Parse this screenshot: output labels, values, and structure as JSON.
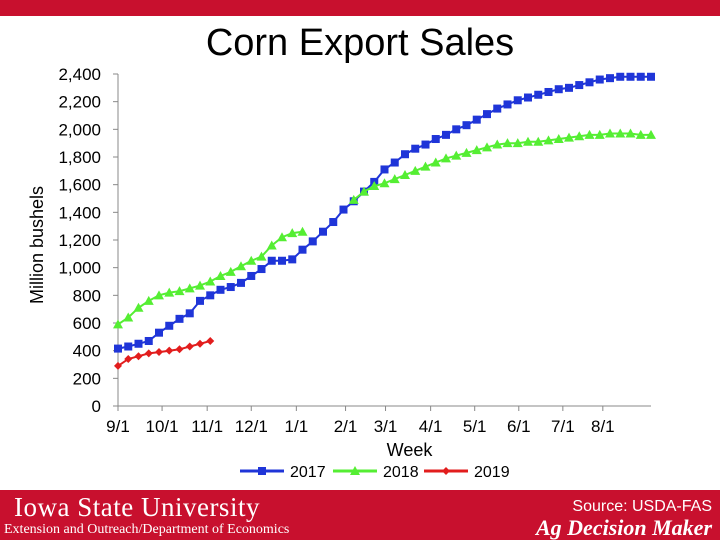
{
  "header": {
    "title": "Corn Export Sales"
  },
  "footer": {
    "university": "Iowa State University",
    "department": "Extension and Outreach/Department of Economics",
    "source": "Source: USDA-FAS",
    "brand": "Ag Decision Maker"
  },
  "colors": {
    "bar": "#c8102e",
    "s2017": "#1f35d8",
    "s2018": "#55ee33",
    "s2019": "#e21d1d"
  },
  "chart_data": {
    "type": "line",
    "title": "Corn Export Sales",
    "xlabel": "Week",
    "ylabel": "Million bushels",
    "ylim": [
      0,
      2400
    ],
    "yticks": [
      0,
      200,
      400,
      600,
      800,
      1000,
      1200,
      1400,
      1600,
      1800,
      2000,
      2200,
      2400
    ],
    "ytick_labels": [
      "0",
      "200",
      "400",
      "600",
      "800",
      "1,000",
      "1,200",
      "1,400",
      "1,600",
      "1,800",
      "2,000",
      "2,200",
      "2,400"
    ],
    "xtick_labels": [
      "9/1",
      "10/1",
      "11/1",
      "12/1",
      "1/1",
      "2/1",
      "3/1",
      "4/1",
      "5/1",
      "6/1",
      "7/1",
      "8/1"
    ],
    "xtick_weeks": [
      0,
      4.3,
      8.7,
      13.0,
      17.4,
      22.2,
      26.1,
      30.5,
      34.8,
      39.1,
      43.4,
      47.3
    ],
    "week_count": 53,
    "grid": false,
    "legend": "bottom",
    "series": [
      {
        "name": "2017",
        "color": "#1f35d8",
        "marker": "square",
        "values": [
          415,
          430,
          450,
          470,
          530,
          580,
          630,
          670,
          760,
          800,
          840,
          860,
          890,
          940,
          990,
          1050,
          1050,
          1060,
          1130,
          1190,
          1260,
          1330,
          1420,
          1480,
          1550,
          1620,
          1710,
          1760,
          1820,
          1860,
          1890,
          1930,
          1960,
          2000,
          2030,
          2070,
          2110,
          2150,
          2180,
          2210,
          2230,
          2250,
          2270,
          2290,
          2300,
          2320,
          2340,
          2360,
          2370,
          2380,
          2380,
          2380,
          2380
        ]
      },
      {
        "name": "2018",
        "color": "#55ee33",
        "marker": "triangle",
        "values": [
          590,
          640,
          710,
          760,
          800,
          820,
          830,
          850,
          870,
          900,
          940,
          970,
          1010,
          1050,
          1080,
          1160,
          1220,
          1250,
          1260,
          null,
          null,
          null,
          null,
          1490,
          1550,
          1590,
          1610,
          1640,
          1670,
          1700,
          1730,
          1760,
          1790,
          1810,
          1830,
          1850,
          1870,
          1890,
          1900,
          1900,
          1910,
          1910,
          1920,
          1930,
          1940,
          1950,
          1960,
          1960,
          1970,
          1970,
          1970,
          1960,
          1960
        ]
      },
      {
        "name": "2019",
        "color": "#e21d1d",
        "marker": "diamond",
        "values": [
          290,
          340,
          360,
          380,
          390,
          400,
          410,
          430,
          450,
          470
        ]
      }
    ]
  }
}
